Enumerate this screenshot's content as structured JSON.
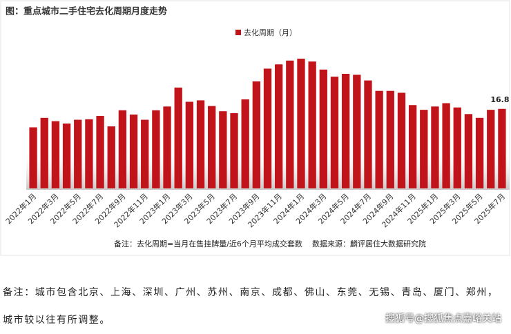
{
  "chart_data": {
    "type": "bar",
    "title": "图：重点城市二手住宅去化周期月度走势",
    "series_name": "去化周期（月）",
    "color": "#c0141a",
    "categories": [
      "2022年1月",
      null,
      "2022年3月",
      null,
      "2022年5月",
      null,
      "2022年7月",
      null,
      "2022年9月",
      null,
      "2022年11月",
      null,
      "2023年1月",
      null,
      "2023年3月",
      null,
      "2023年5月",
      null,
      "2023年7月",
      null,
      "2023年9月",
      null,
      "2023年11月",
      null,
      "2024年1月",
      null,
      "2024年3月",
      null,
      "2024年5月",
      null,
      "2024年7月",
      null,
      "2024年9月",
      null,
      "2024年11月",
      null,
      "2025年1月",
      null,
      "2025年3月",
      null,
      "2025年5月",
      null,
      "2025年7月"
    ],
    "values": [
      12.9,
      14.9,
      14.2,
      13.7,
      14.5,
      14.6,
      15.3,
      13.1,
      16.5,
      15.6,
      14.5,
      16.5,
      17.3,
      21.3,
      18.3,
      18.6,
      17.4,
      16.3,
      15.9,
      18.8,
      22.6,
      25.3,
      26.2,
      27.0,
      27.4,
      26.8,
      25.1,
      23.6,
      24.2,
      24.0,
      22.8,
      20.6,
      20.6,
      20.2,
      17.6,
      16.6,
      17.3,
      18.0,
      17.1,
      15.7,
      14.9,
      16.6,
      16.8
    ],
    "note": "备注：去化周期=当月在售挂牌量/近6个月平均成交套数",
    "source": "数据来源：麟评居住大数据研究院"
  },
  "remark": "备注：城市包含北京、上海、深圳、广州、苏州、南京、成都、佛山、东莞、无锡、青岛、厦门、郑州，城市较以往有所调整。",
  "watermark": "搜狐号@搜狐焦点嘉峪关站"
}
